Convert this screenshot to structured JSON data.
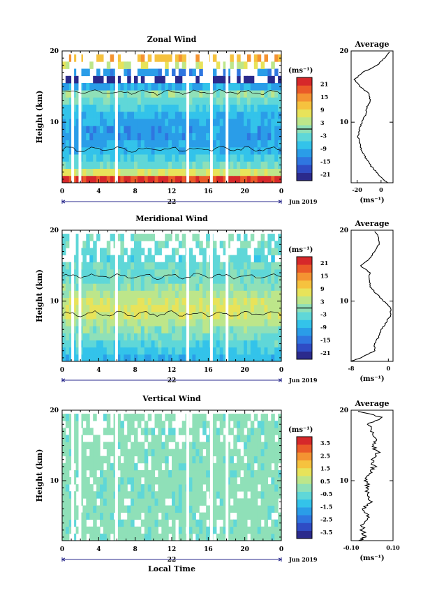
{
  "chart_data": [
    {
      "type": "heatmap",
      "title": "Zonal Wind",
      "ylabel": "Height (km)",
      "xlabel": "",
      "xlim": [
        0,
        24
      ],
      "ylim": [
        1.5,
        20
      ],
      "x_ticks": [
        "0",
        "4",
        "8",
        "12",
        "16",
        "20",
        "0"
      ],
      "y_ticks": [
        "10",
        "20"
      ],
      "date_label": "22",
      "month_label": "Jun 2019",
      "colorbar": {
        "unit": "(ms⁻¹)",
        "vmin": -24,
        "vmax": 24,
        "ticks": [
          "21",
          "15",
          "9",
          "3",
          "-3",
          "-9",
          "-15",
          "-21"
        ],
        "zero_line": true
      },
      "profile": {
        "title": "Average",
        "xlabel": "(ms⁻¹)",
        "xlim": [
          -25,
          10
        ],
        "x_ticks": [
          "-20",
          "0"
        ],
        "y_ticks": [
          "10",
          "20"
        ],
        "height": [
          1.5,
          2,
          3,
          4,
          5,
          6,
          7,
          8,
          9,
          10,
          11,
          12,
          13,
          14,
          15,
          16,
          17,
          18,
          19,
          20
        ],
        "values": [
          5,
          2,
          -4,
          -9,
          -13,
          -16,
          -18,
          -19,
          -18,
          -16,
          -13,
          -12,
          -9,
          -10,
          -18,
          -22,
          -15,
          -3,
          3,
          8
        ]
      },
      "field_rows": [
        {
          "height": 2,
          "u": 21
        },
        {
          "height": 3,
          "u": 6
        },
        {
          "height": 4,
          "u": -3
        },
        {
          "height": 5,
          "u": -5
        },
        {
          "height": 6,
          "u": -8
        },
        {
          "height": 7,
          "u": -10
        },
        {
          "height": 8,
          "u": -11
        },
        {
          "height": 9,
          "u": -11
        },
        {
          "height": 10,
          "u": -10
        },
        {
          "height": 11,
          "u": -8
        },
        {
          "height": 12,
          "u": -6
        },
        {
          "height": 13,
          "u": -3
        },
        {
          "height": 14,
          "u": 0
        },
        {
          "height": 15,
          "u": -10
        },
        {
          "height": 16,
          "u": -24
        },
        {
          "height": 17,
          "u": -12
        },
        {
          "height": 18,
          "u": 6
        },
        {
          "height": 19,
          "u": 12
        }
      ]
    },
    {
      "type": "heatmap",
      "title": "Meridional Wind",
      "ylabel": "Height (km)",
      "xlabel": "",
      "xlim": [
        0,
        24
      ],
      "ylim": [
        1.5,
        20
      ],
      "x_ticks": [
        "0",
        "4",
        "8",
        "12",
        "16",
        "20",
        "0"
      ],
      "y_ticks": [
        "10",
        "20"
      ],
      "date_label": "22",
      "month_label": "Jun 2019",
      "colorbar": {
        "unit": "(ms⁻¹)",
        "vmin": -24,
        "vmax": 24,
        "ticks": [
          "21",
          "15",
          "9",
          "3",
          "-3",
          "-9",
          "-15",
          "-21"
        ],
        "zero_line": true
      },
      "profile": {
        "title": "Average",
        "xlabel": "(ms⁻¹)",
        "xlim": [
          -8,
          1
        ],
        "x_ticks": [
          "-8",
          "0"
        ],
        "y_ticks": [
          "10",
          "20"
        ],
        "height": [
          1.5,
          2,
          3,
          4,
          5,
          6,
          7,
          8,
          9,
          10,
          11,
          12,
          13,
          14,
          15,
          16,
          17,
          18,
          19,
          20
        ],
        "values": [
          -8,
          -6,
          -3,
          -3,
          -2,
          -1.5,
          -0.5,
          0.5,
          0.5,
          -1,
          -2.5,
          -4,
          -4,
          -4,
          -6,
          -4,
          -3,
          -2,
          -2,
          -3
        ]
      },
      "field_rows": [
        {
          "height": 2,
          "u": -8
        },
        {
          "height": 3,
          "u": -6
        },
        {
          "height": 4,
          "u": -4
        },
        {
          "height": 5,
          "u": -2
        },
        {
          "height": 6,
          "u": 0
        },
        {
          "height": 7,
          "u": 3
        },
        {
          "height": 8,
          "u": 5
        },
        {
          "height": 9,
          "u": 6
        },
        {
          "height": 10,
          "u": 5
        },
        {
          "height": 11,
          "u": 3
        },
        {
          "height": 12,
          "u": 0
        },
        {
          "height": 13,
          "u": -2
        },
        {
          "height": 14,
          "u": -3
        },
        {
          "height": 15,
          "u": -2
        },
        {
          "height": 16,
          "u": -4
        },
        {
          "height": 17,
          "u": -3
        },
        {
          "height": 18,
          "u": -2
        },
        {
          "height": 19,
          "u": -2
        }
      ]
    },
    {
      "type": "heatmap",
      "title": "Vertical Wind",
      "ylabel": "Height (km)",
      "xlabel": "Local Time",
      "xlim": [
        0,
        24
      ],
      "ylim": [
        1.5,
        20
      ],
      "x_ticks": [
        "0",
        "4",
        "8",
        "12",
        "16",
        "20",
        "0"
      ],
      "y_ticks": [
        "10",
        "20"
      ],
      "date_label": "22",
      "month_label": "Jun 2019",
      "colorbar": {
        "unit": "(ms⁻¹)",
        "vmin": -4,
        "vmax": 4,
        "ticks": [
          "3.5",
          "2.5",
          "1.5",
          "0.5",
          "-0.5",
          "-1.5",
          "-2.5",
          "-3.5"
        ],
        "zero_line": false
      },
      "profile": {
        "title": "Average",
        "xlabel": "(ms⁻¹)",
        "xlim": [
          -0.1,
          0.1
        ],
        "x_ticks": [
          "-0.10",
          "0.10"
        ],
        "y_ticks": [
          "10",
          "20"
        ],
        "height": [
          1.5,
          2,
          3,
          4,
          5,
          6,
          7,
          8,
          9,
          10,
          11,
          12,
          13,
          14,
          15,
          16,
          17,
          18,
          19,
          20
        ],
        "values": [
          -0.06,
          -0.03,
          -0.05,
          -0.04,
          -0.02,
          -0.04,
          -0.01,
          -0.03,
          -0.02,
          -0.03,
          -0.01,
          0.01,
          0.0,
          0.03,
          0.0,
          0.02,
          0.0,
          -0.02,
          0.05,
          -0.08
        ]
      },
      "field_rows": [
        {
          "height": 2,
          "u": 0
        },
        {
          "height": 3,
          "u": 0
        },
        {
          "height": 4,
          "u": 0
        },
        {
          "height": 5,
          "u": 0
        },
        {
          "height": 6,
          "u": 0
        },
        {
          "height": 7,
          "u": 0
        },
        {
          "height": 8,
          "u": 0
        },
        {
          "height": 9,
          "u": 0
        },
        {
          "height": 10,
          "u": 0
        },
        {
          "height": 11,
          "u": 0
        },
        {
          "height": 12,
          "u": 0
        },
        {
          "height": 13,
          "u": 0
        },
        {
          "height": 14,
          "u": 0
        },
        {
          "height": 15,
          "u": 0
        },
        {
          "height": 16,
          "u": 0
        },
        {
          "height": 17,
          "u": 0
        },
        {
          "height": 18,
          "u": 0
        },
        {
          "height": 19,
          "u": 0
        }
      ]
    }
  ],
  "data_gaps_local_time": [
    1.0,
    1.8,
    5.8,
    13.6,
    16.2,
    17.9
  ]
}
